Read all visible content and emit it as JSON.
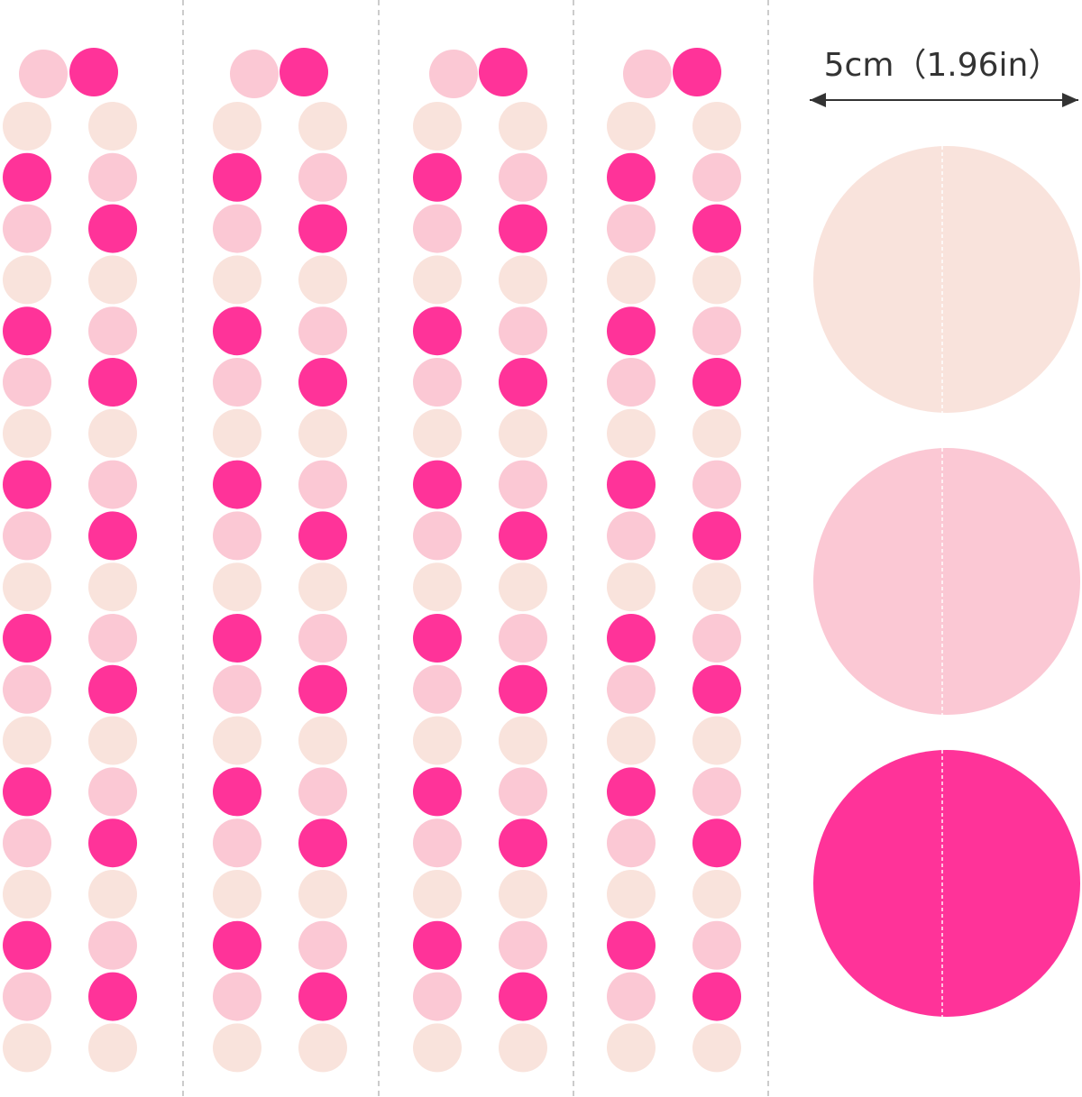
{
  "size_label": "5cm（1.96in）"
}
